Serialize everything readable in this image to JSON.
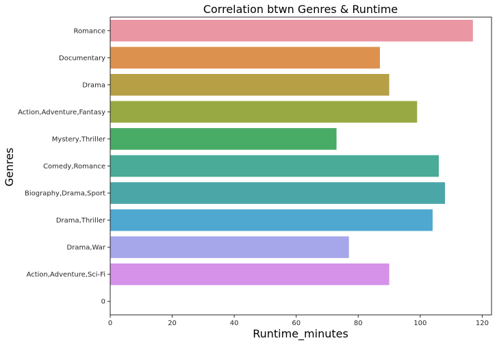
{
  "chart_data": {
    "type": "bar",
    "orientation": "horizontal",
    "title": "Correlation btwn Genres & Runtime",
    "xlabel": "Runtime_minutes",
    "ylabel": "Genres",
    "xlim": [
      0,
      123
    ],
    "xticks": [
      0,
      20,
      40,
      60,
      80,
      100,
      120
    ],
    "grid": false,
    "categories": [
      "Romance",
      "Documentary",
      "Drama",
      "Action,Adventure,Fantasy",
      "Mystery,Thriller",
      "Comedy,Romance",
      "Biography,Drama,Sport",
      "Drama,Thriller",
      "Drama,War",
      "Action,Adventure,Sci-Fi",
      "0"
    ],
    "values": [
      117,
      87,
      90,
      99,
      73,
      106,
      108,
      104,
      77,
      90,
      0
    ],
    "colors": [
      "#ea96a3",
      "#dd914f",
      "#b69f45",
      "#98a943",
      "#48ab66",
      "#4aab99",
      "#4ba6a8",
      "#4fa8d0",
      "#a5a7ea",
      "#d592e8",
      "#ea90c6"
    ]
  }
}
